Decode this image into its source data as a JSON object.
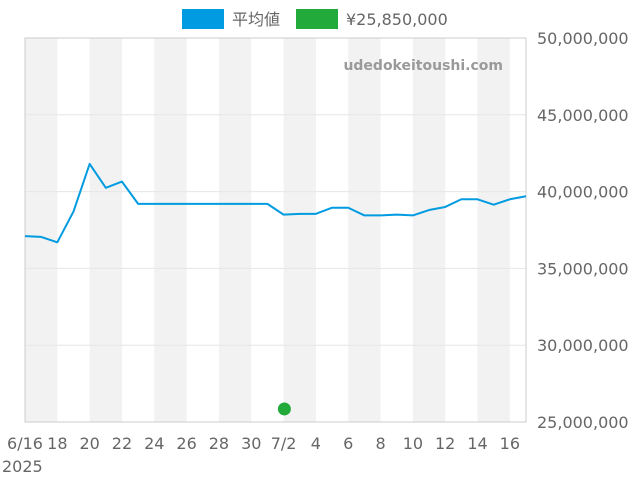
{
  "legend": {
    "series_label": "平均値",
    "point_label": "¥25,850,000"
  },
  "watermark": "udedokeitoushi.com",
  "x_year_label": "2025",
  "chart_data": {
    "type": "line",
    "title": "",
    "xlabel": "",
    "ylabel": "",
    "ylim": [
      25000000,
      50000000
    ],
    "y_tick_labels": [
      "25,000,000",
      "30,000,000",
      "35,000,000",
      "40,000,000",
      "45,000,000",
      "50,000,000"
    ],
    "y_ticks": [
      25000000,
      30000000,
      35000000,
      40000000,
      45000000,
      50000000
    ],
    "x_tick_labels": [
      "6/16",
      "18",
      "20",
      "22",
      "24",
      "26",
      "28",
      "30",
      "7/2",
      "4",
      "6",
      "8",
      "10",
      "12",
      "14",
      "16"
    ],
    "grid": true,
    "alternating_bands": true,
    "legend_position": "top",
    "colors": {
      "line": "#009be0",
      "point": "#22aa3a",
      "band": "#f2f2f2",
      "axis": "#cccccc"
    },
    "series": [
      {
        "name": "平均値",
        "values": [
          37100000,
          37050000,
          36700000,
          38700000,
          41800000,
          40250000,
          40650000,
          39200000,
          39200000,
          39200000,
          39200000,
          39200000,
          39200000,
          39200000,
          39200000,
          39200000,
          38500000,
          38550000,
          38550000,
          38950000,
          38950000,
          38450000,
          38450000,
          38500000,
          38450000,
          38800000,
          39000000,
          39500000,
          39500000,
          39150000,
          39500000,
          39700000
        ]
      }
    ],
    "points": [
      {
        "name": "¥25,850,000",
        "day_index": 15,
        "value": 25850000
      }
    ]
  }
}
